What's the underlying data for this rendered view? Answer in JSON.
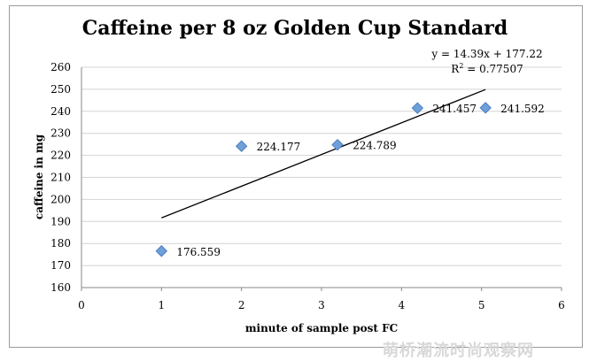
{
  "chart_data": {
    "type": "scatter",
    "title": "Caffeine per 8 oz Golden Cup Standard",
    "xlabel": "minute of sample post FC",
    "ylabel": "caffeine in mg",
    "xlim": [
      0,
      6
    ],
    "ylim": [
      160,
      260
    ],
    "xticks": [
      0,
      1,
      2,
      3,
      4,
      5,
      6
    ],
    "yticks": [
      160,
      170,
      180,
      190,
      200,
      210,
      220,
      230,
      240,
      250,
      260
    ],
    "grid": "horizontal",
    "legend": "none",
    "point_color": "#6fa0d8",
    "points": [
      {
        "x": 1,
        "y": 176.559,
        "label": "176.559"
      },
      {
        "x": 2,
        "y": 224.177,
        "label": "224.177"
      },
      {
        "x": 3.2,
        "y": 224.789,
        "label": "224.789"
      },
      {
        "x": 4.2,
        "y": 241.457,
        "label": "241.457"
      },
      {
        "x": 5.05,
        "y": 241.592,
        "label": "241.592"
      }
    ],
    "trendline": {
      "slope": 14.39,
      "intercept": 177.22,
      "x_range": [
        1,
        5.05
      ],
      "equation": "y = 14.39x + 177.22",
      "r2_prefix": "R",
      "r2_exp": "2",
      "r2_value": " = 0.77507"
    }
  },
  "watermark": "萌桥潮流时尚观察网"
}
